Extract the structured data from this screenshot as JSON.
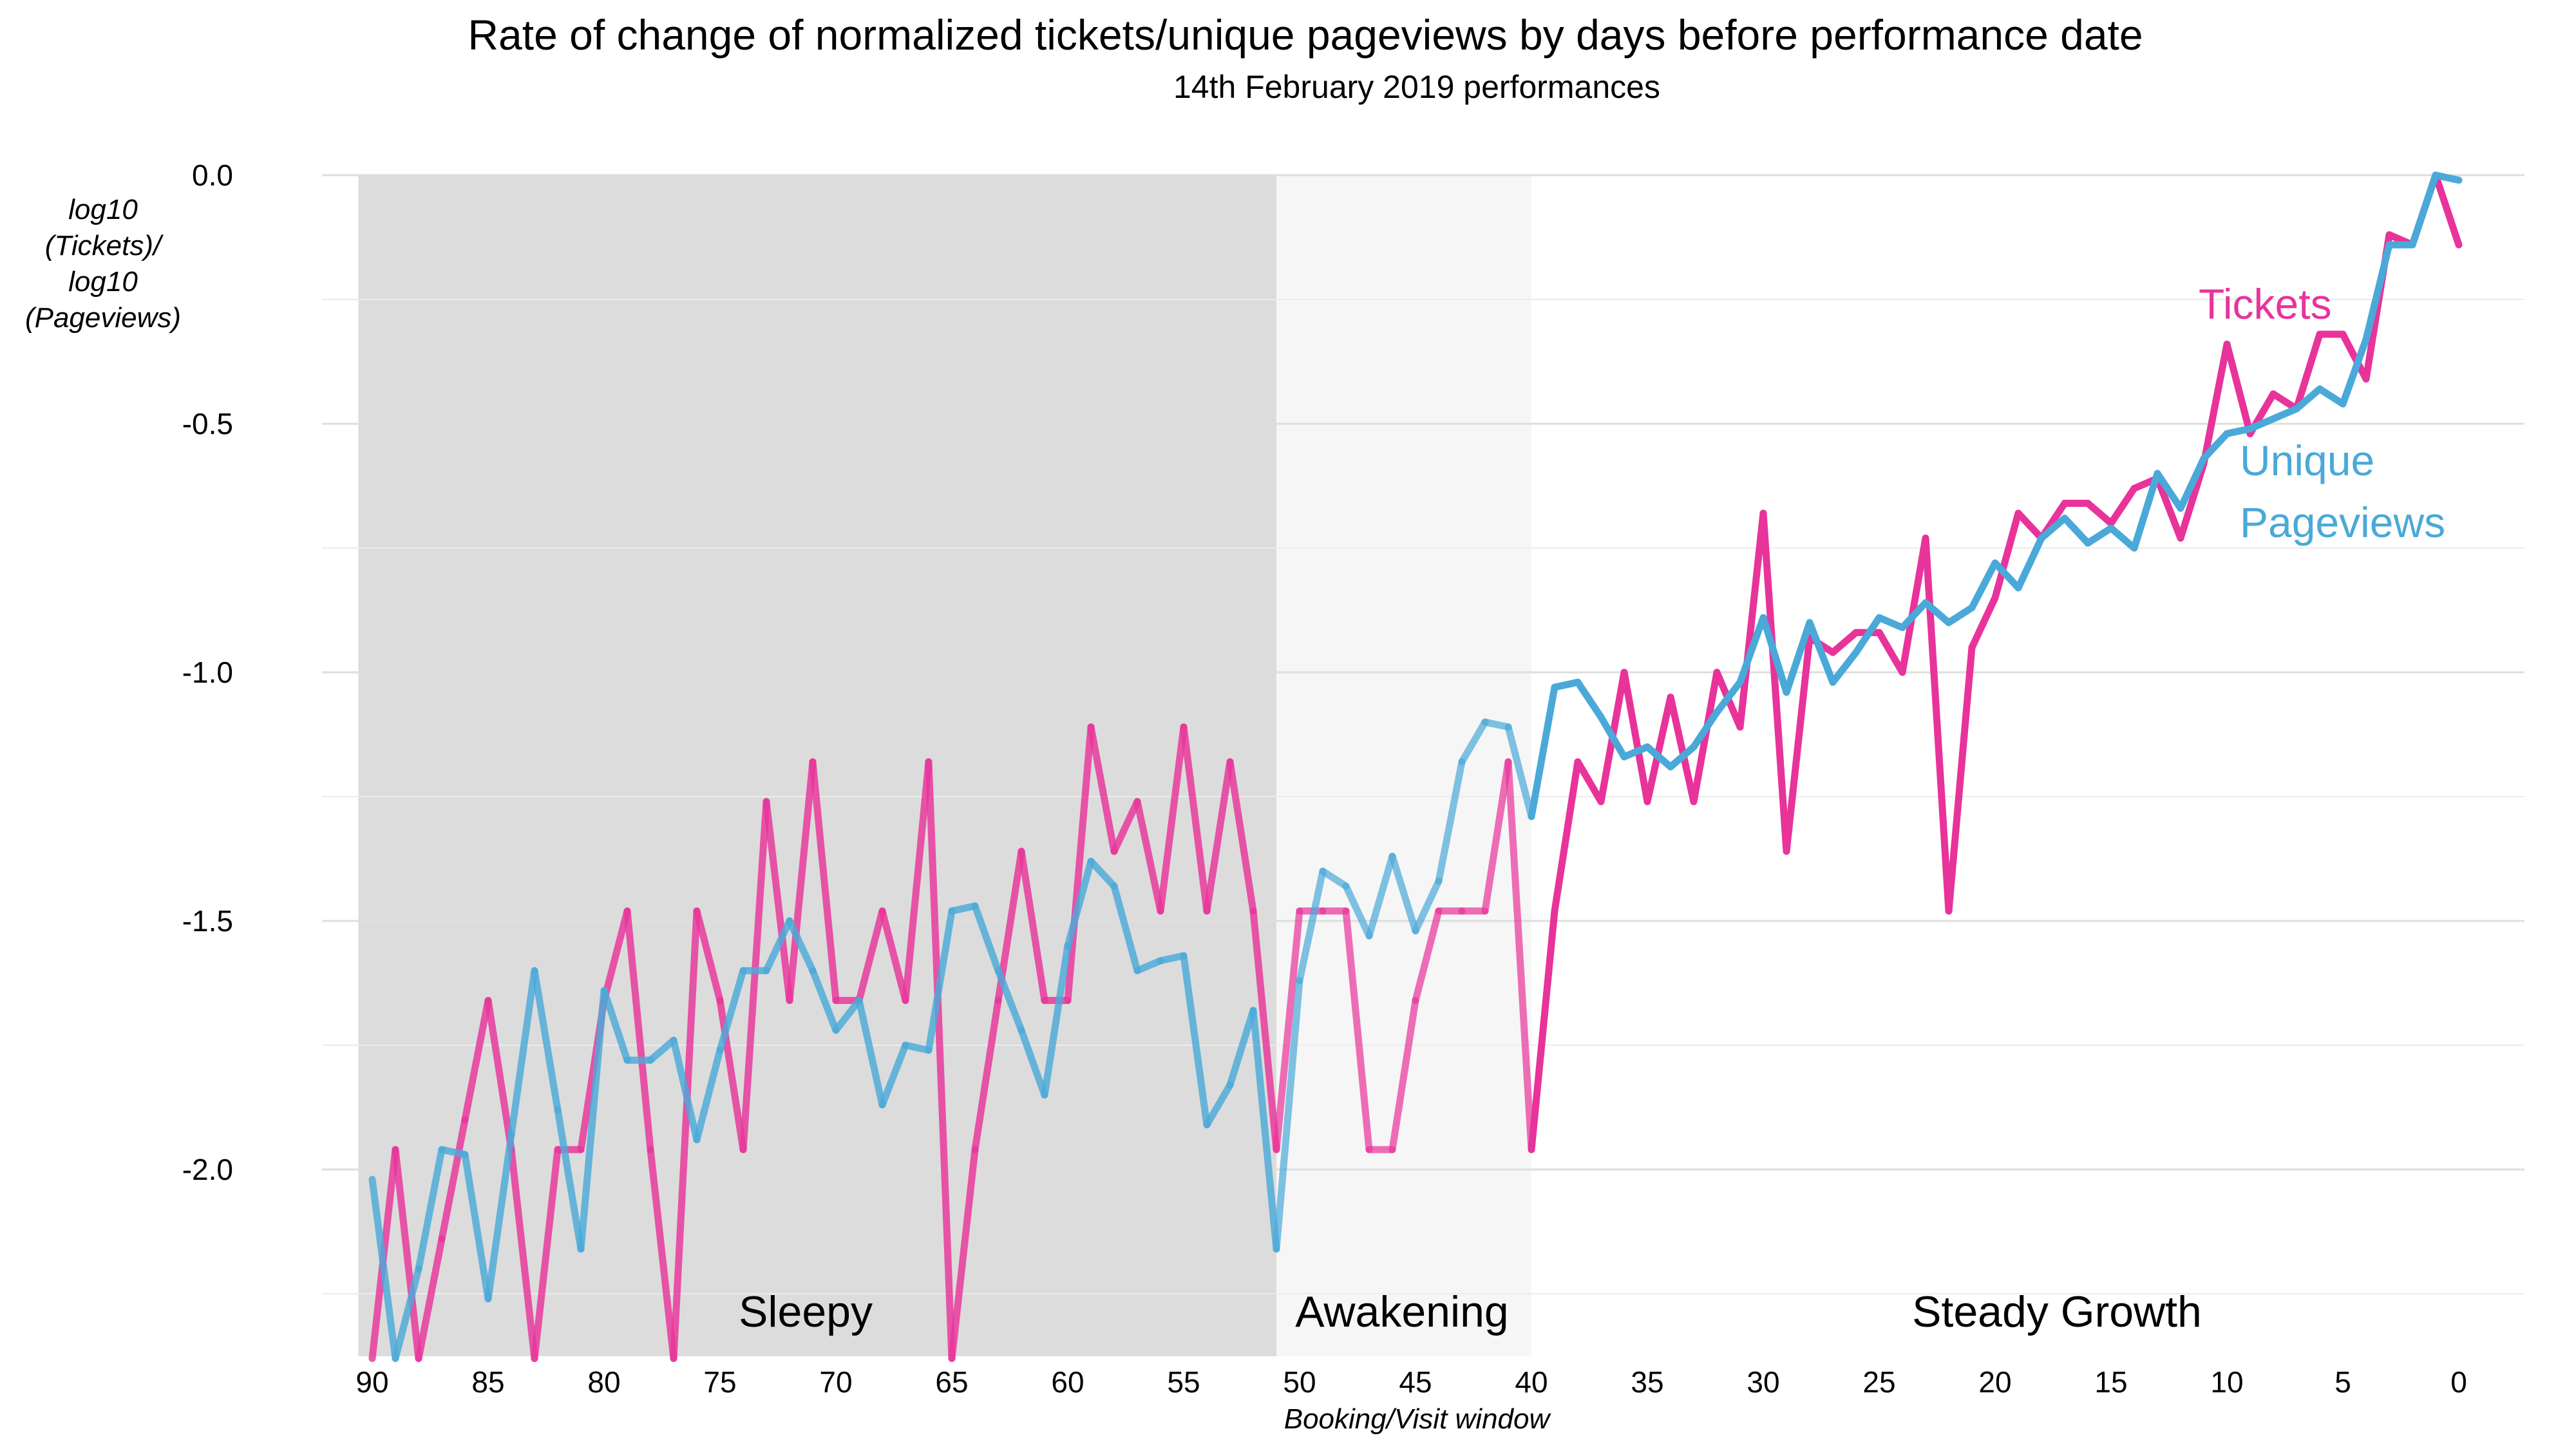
{
  "chart_data": {
    "type": "line",
    "title": "Rate of change of normalized tickets/unique pageviews by days before performance date",
    "subtitle": "14th February 2019 performances",
    "xlabel": "Booking/Visit window",
    "ylabel_lines": [
      "log10",
      "(Tickets)/",
      "log10",
      "(Pageviews)"
    ],
    "x_reversed": true,
    "xlim": [
      90,
      0
    ],
    "ylim": [
      -2.38,
      0.0
    ],
    "x_ticks": [
      90,
      85,
      80,
      75,
      70,
      65,
      60,
      55,
      50,
      45,
      40,
      35,
      30,
      25,
      20,
      15,
      10,
      5,
      0
    ],
    "x_tick_labels": [
      "90",
      "85",
      "80",
      "75",
      "70",
      "65",
      "60",
      "55",
      "50",
      "45",
      "40",
      "35",
      "30",
      "25",
      "20",
      "15",
      "10",
      "5",
      "0"
    ],
    "y_ticks": [
      0.0,
      -0.5,
      -1.0,
      -1.5,
      -2.0
    ],
    "y_tick_labels": [
      "0.0",
      "-0.5",
      "-1.0",
      "-1.5",
      "-2.0"
    ],
    "grid": true,
    "phases": [
      {
        "name": "Sleepy",
        "from": 90.6,
        "to": 51,
        "color": "#dcdcdc"
      },
      {
        "name": "Awakening",
        "from": 51,
        "to": 40,
        "color": "#f6f6f6"
      },
      {
        "name": "Steady Growth",
        "from": 40,
        "to": 0,
        "color": "#ffffff"
      }
    ],
    "x": [
      90,
      89,
      88,
      87,
      86,
      85,
      84,
      83,
      82,
      81,
      80,
      79,
      78,
      77,
      76,
      75,
      74,
      73,
      72,
      71,
      70,
      69,
      68,
      67,
      66,
      65,
      64,
      63,
      62,
      61,
      60,
      59,
      58,
      57,
      56,
      55,
      54,
      53,
      52,
      51,
      50,
      49,
      48,
      47,
      46,
      45,
      44,
      43,
      42,
      41,
      40,
      39,
      38,
      37,
      36,
      35,
      34,
      33,
      32,
      31,
      30,
      29,
      28,
      27,
      26,
      25,
      24,
      23,
      22,
      21,
      20,
      19,
      18,
      17,
      16,
      15,
      14,
      13,
      12,
      11,
      10,
      9,
      8,
      7,
      6,
      5,
      4,
      3,
      2,
      1,
      0
    ],
    "series": [
      {
        "name": "Tickets",
        "color": "#e8339a",
        "values": [
          -2.38,
          -1.96,
          -2.38,
          -2.14,
          -1.9,
          -1.66,
          -1.96,
          -2.38,
          -1.96,
          -1.96,
          -1.66,
          -1.48,
          -1.96,
          -2.38,
          -1.48,
          -1.66,
          -1.96,
          -1.26,
          -1.66,
          -1.18,
          -1.66,
          -1.66,
          -1.48,
          -1.66,
          -1.18,
          -2.38,
          -1.96,
          -1.66,
          -1.36,
          -1.66,
          -1.66,
          -1.11,
          -1.36,
          -1.26,
          -1.48,
          -1.11,
          -1.48,
          -1.18,
          -1.48,
          -1.96,
          -1.48,
          -1.48,
          -1.48,
          -1.96,
          -1.96,
          -1.66,
          -1.48,
          -1.48,
          -1.48,
          -1.18,
          -1.96,
          -1.48,
          -1.18,
          -1.26,
          -1.0,
          -1.26,
          -1.05,
          -1.26,
          -1.0,
          -1.11,
          -0.68,
          -1.36,
          -0.93,
          -0.96,
          -0.92,
          -0.92,
          -1.0,
          -0.73,
          -1.48,
          -0.95,
          -0.85,
          -0.68,
          -0.73,
          -0.66,
          -0.66,
          -0.7,
          -0.63,
          -0.61,
          -0.73,
          -0.58,
          -0.34,
          -0.52,
          -0.44,
          -0.47,
          -0.32,
          -0.32,
          -0.41,
          -0.12,
          -0.14,
          0.0,
          -0.14
        ]
      },
      {
        "name": "Unique Pageviews",
        "color": "#4aa9d8",
        "values": [
          -2.02,
          -2.38,
          -2.2,
          -1.96,
          -1.97,
          -2.26,
          -1.93,
          -1.6,
          -1.88,
          -2.16,
          -1.64,
          -1.78,
          -1.78,
          -1.74,
          -1.94,
          -1.76,
          -1.6,
          -1.6,
          -1.5,
          -1.6,
          -1.72,
          -1.66,
          -1.87,
          -1.75,
          -1.76,
          -1.48,
          -1.47,
          -1.6,
          -1.72,
          -1.85,
          -1.55,
          -1.38,
          -1.43,
          -1.6,
          -1.58,
          -1.57,
          -1.91,
          -1.83,
          -1.68,
          -2.16,
          -1.62,
          -1.4,
          -1.43,
          -1.53,
          -1.37,
          -1.52,
          -1.42,
          -1.18,
          -1.1,
          -1.11,
          -1.29,
          -1.03,
          -1.02,
          -1.09,
          -1.17,
          -1.15,
          -1.19,
          -1.15,
          -1.08,
          -1.02,
          -0.89,
          -1.04,
          -0.9,
          -1.02,
          -0.96,
          -0.89,
          -0.91,
          -0.86,
          -0.9,
          -0.87,
          -0.78,
          -0.83,
          -0.73,
          -0.69,
          -0.74,
          -0.71,
          -0.75,
          -0.6,
          -0.67,
          -0.57,
          -0.52,
          -0.51,
          -0.49,
          -0.47,
          -0.43,
          -0.46,
          -0.33,
          -0.14,
          -0.14,
          0.0,
          -0.01
        ]
      }
    ],
    "series_labels": {
      "tickets": "Tickets",
      "pageviews_line1": "Unique",
      "pageviews_line2": "Pageviews"
    }
  }
}
